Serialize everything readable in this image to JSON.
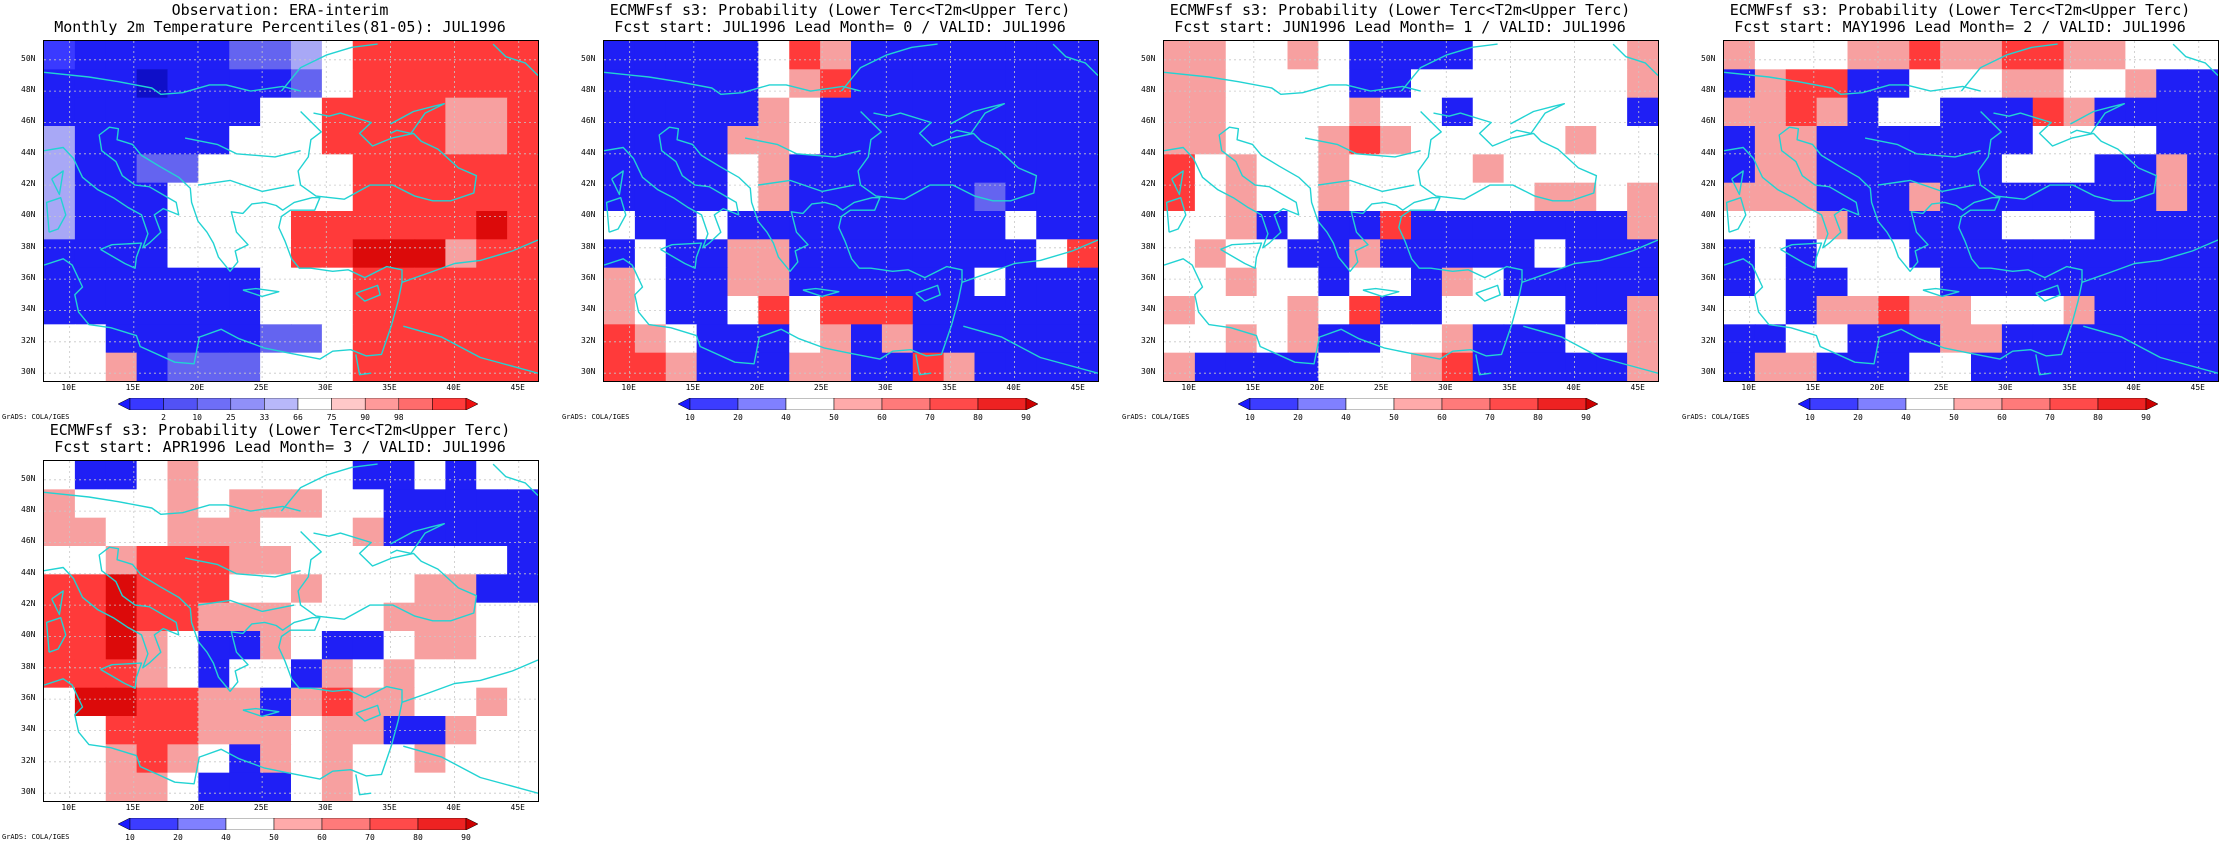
{
  "figure": {
    "panels": [
      {
        "id": "obs",
        "title_line1": "Observation: ERA-interim",
        "title_line2": "Monthly 2m Temperature Percentiles(81-05): JUL1996",
        "colorbar_key": "obs",
        "grid": [
          "CBBBBBLLZ.RRRRRR",
          "BBBXBBBBL.RRRRRR",
          "BBBBBBB..RRRRPPR",
          "ZBBBBB...RRRRPPR",
          "ZBBLL.....RRRRRR",
          "ZBBB......RRRRRR",
          "ZBBB....RRRRRRDR",
          "BBBB....RRDDDPRR",
          "BBBBBBB...RRRRRR",
          "BBBBBBB...RRRRRR",
          "..BBBBBLL.RRRRRR",
          "..PBLLL...RRRRRR"
        ]
      },
      {
        "id": "lead0",
        "title_line1": "ECMWFsf s3: Probability (Lower Terc<T2m<Upper Terc)",
        "title_line2": "Fcst start: JUL1996  Lead Month= 0 / VALID: JUL1996",
        "colorbar_key": "prob",
        "grid": [
          "BBBBB.RPBBBBBBBB",
          "BBBBB.PRBBBBBBBB",
          "BBBBBP.BBBBBBBBB",
          "BBBBPP.BBBBBBBBB",
          "BBBB.PBBBBBBBBBB",
          "BBBB.PBBBBBBLBBB",
          ".BB.BBBBBBBBB.BB",
          "B.BBPPBBBBBBBB.R",
          "P.BBPPBBBBBB.BBB",
          "P.BB.R.RRRBBBBBB",
          "RP.BBB.PBPBBBBBB",
          "RRPBBBPPBBRPBBBB"
        ]
      },
      {
        "id": "lead1",
        "title_line1": "ECMWFsf s3: Probability (Lower Terc<T2m<Upper Terc)",
        "title_line2": "Fcst start: JUN1996  Lead Month= 1 / VALID: JUL1996",
        "colorbar_key": "prob",
        "grid": [
          "PP..P.BBBB.....P",
          "PP....BB.......P",
          "PP....P..B.....B",
          "PP...PRP.....P..",
          "R.P..P....P.....",
          "R.P..P......PP.P",
          "..PB.BBRBBBBBBBP",
          ".P..BBPBBBBB.BBB",
          "..P..B..BP.BBBBB",
          "P...P.RBB....BBP",
          "..P.PBB..PBBB..P",
          "PBBBB...PRBBBBBP"
        ]
      },
      {
        "id": "lead2",
        "title_line1": "ECMWFsf s3: Probability (Lower Terc<T2m<Upper Terc)",
        "title_line2": "Fcst start: MAY1996  Lead Month= 2 / VALID: JUL1996",
        "colorbar_key": "prob",
        "grid": [
          "P...PPRPPRRPP...",
          "BPRRBB...PP..PBB",
          "PPRPB..BBBRPBBBB",
          "BPPBBBBBBB....BB",
          "BPPBBBBBB...BBPB",
          "PPPBBBPBBBBBBBPB",
          "...PBBBBB...BBBB",
          "B.B...BBBBBBBBBB",
          "B.BB...BBBBBBBBB",
          "..BPPRPP...PBBBB",
          "BB..BBBPPBBBBBBB",
          "BPPBBB..BBBBBBBB"
        ]
      },
      {
        "id": "lead3",
        "title_line1": "ECMWFsf s3: Probability (Lower Terc<T2m<Upper Terc)",
        "title_line2": "Fcst start: APR1996  Lead Month= 3 / VALID: JUL1996",
        "colorbar_key": "prob",
        "grid": [
          ".BB.P.....BB.B..",
          "P...P.PPP..BBBBB",
          "PP..PPP...PBBBBB",
          "..PRRRPP.......B",
          "RRDRRR..P...PPBB",
          "RRDRRPPP...PPP..",
          "RRDP.BBP.BB.PP..",
          "RRRP.B..BP.P....",
          ".DDRRPPBPRPP..P.",
          "..RRRPPP.PPBBP..",
          "..PRP.BP.P..P...",
          "..PP.BBB.P......"
        ]
      }
    ],
    "colorbars": {
      "obs": {
        "colors": [
          "#1a1aff",
          "#3838ff",
          "#5252f5",
          "#6e6ef7",
          "#9090f8",
          "#b8b8fa",
          "#ffffff",
          "#ffc8c8",
          "#ff9a9a",
          "#ff6c6c",
          "#ff3a3a",
          "#ee1010"
        ],
        "labels": [
          "2",
          "10",
          "25",
          "33",
          "66",
          "75",
          "90",
          "98"
        ]
      },
      "prob": {
        "colors": [
          "#1a1aff",
          "#3c3cff",
          "#8080ff",
          "#ffffff",
          "#ffaaaa",
          "#ff7a7a",
          "#ff4a4a",
          "#ee2222",
          "#cc0000"
        ],
        "labels": [
          "10",
          "20",
          "40",
          "50",
          "60",
          "70",
          "80",
          "90"
        ]
      }
    },
    "cell_colors": {
      "B": "#1f1ff5",
      "C": "#3a3aff",
      "X": "#0f0fc8",
      "L": "#6464f0",
      "Z": "#a8a8f6",
      ".": "#ffffff",
      "P": "#f7a0a0",
      "R": "#ff3a3a",
      "D": "#dc0a0a"
    },
    "axis": {
      "y_labels": [
        "50N",
        "48N",
        "46N",
        "44N",
        "42N",
        "40N",
        "38N",
        "36N",
        "34N",
        "32N",
        "30N"
      ],
      "x_labels": [
        "10E",
        "15E",
        "20E",
        "25E",
        "30E",
        "35E",
        "40E",
        "45E"
      ]
    },
    "credit": "GrADS: COLA/IGES",
    "coast_color": "#22d3d3",
    "grid_line_color": "#c8c8c8"
  }
}
